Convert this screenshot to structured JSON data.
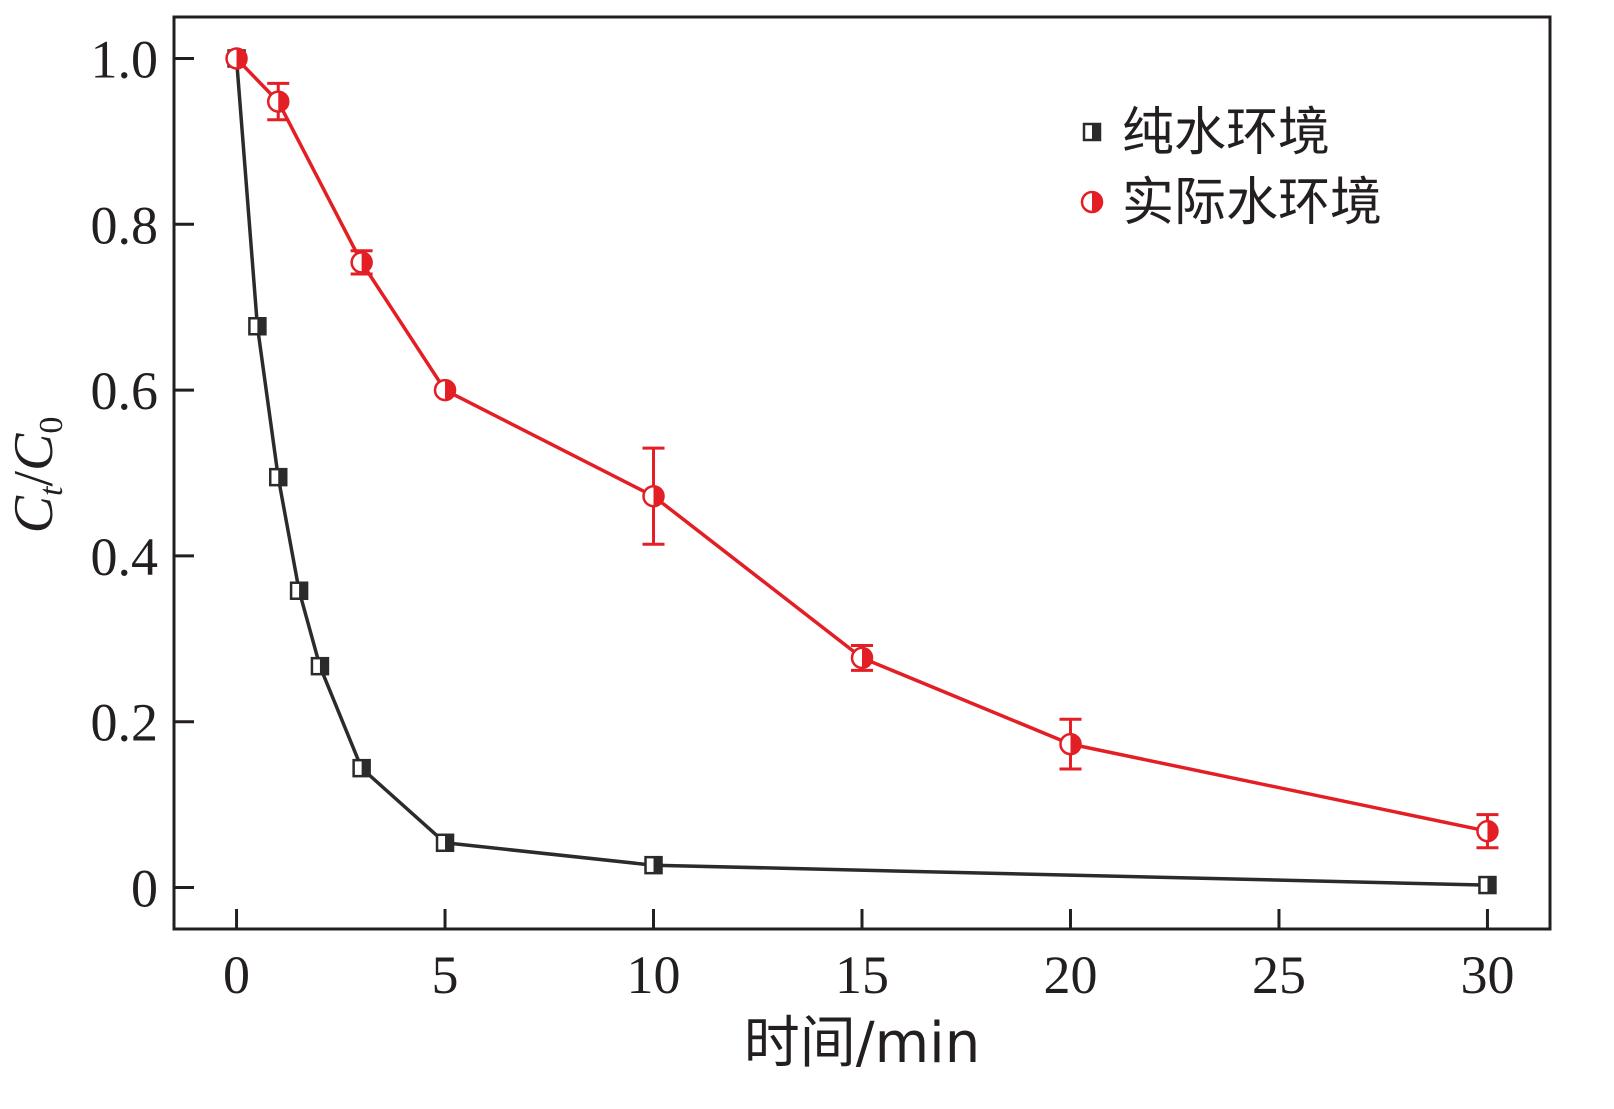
{
  "chart_data": {
    "type": "line",
    "xlabel": "时间/min",
    "ylabel": {
      "main": "C",
      "sub1": "t",
      "sep": "/",
      "main2": "C",
      "sub2": "0"
    },
    "xlim": [
      -1.5,
      31.5
    ],
    "ylim": [
      -0.05,
      1.05
    ],
    "x_ticks": [
      {
        "value": 0,
        "label": "0"
      },
      {
        "value": 5,
        "label": "5"
      },
      {
        "value": 10,
        "label": "10"
      },
      {
        "value": 15,
        "label": "15"
      },
      {
        "value": 20,
        "label": "20"
      },
      {
        "value": 25,
        "label": "25"
      },
      {
        "value": 30,
        "label": "30"
      }
    ],
    "y_ticks": [
      {
        "value": 0,
        "label": "0"
      },
      {
        "value": 0.2,
        "label": "0.2"
      },
      {
        "value": 0.4,
        "label": "0.4"
      },
      {
        "value": 0.6,
        "label": "0.6"
      },
      {
        "value": 0.8,
        "label": "0.8"
      },
      {
        "value": 1.0,
        "label": "1.0"
      }
    ],
    "grid": false,
    "legend_position": "top-right",
    "series": [
      {
        "name": "纯水环境",
        "color": "#2b2b2b",
        "marker": "half-filled-square",
        "points": [
          {
            "x": 0,
            "y": 1.0,
            "err": 0
          },
          {
            "x": 0.5,
            "y": 0.677,
            "err": 0
          },
          {
            "x": 1,
            "y": 0.495,
            "err": 0
          },
          {
            "x": 1.5,
            "y": 0.358,
            "err": 0
          },
          {
            "x": 2,
            "y": 0.267,
            "err": 0
          },
          {
            "x": 3,
            "y": 0.144,
            "err": 0
          },
          {
            "x": 5,
            "y": 0.054,
            "err": 0
          },
          {
            "x": 10,
            "y": 0.027,
            "err": 0
          },
          {
            "x": 30,
            "y": 0.003,
            "err": 0
          }
        ]
      },
      {
        "name": "实际水环境",
        "color": "#e31e24",
        "marker": "half-filled-circle",
        "points": [
          {
            "x": 0,
            "y": 1.0,
            "err": 0
          },
          {
            "x": 1,
            "y": 0.948,
            "err": 0.022
          },
          {
            "x": 3,
            "y": 0.754,
            "err": 0.014
          },
          {
            "x": 5,
            "y": 0.6,
            "err": 0
          },
          {
            "x": 10,
            "y": 0.472,
            "err": 0.058
          },
          {
            "x": 15,
            "y": 0.277,
            "err": 0.015
          },
          {
            "x": 20,
            "y": 0.173,
            "err": 0.03
          },
          {
            "x": 30,
            "y": 0.068,
            "err": 0.02
          }
        ]
      }
    ]
  }
}
